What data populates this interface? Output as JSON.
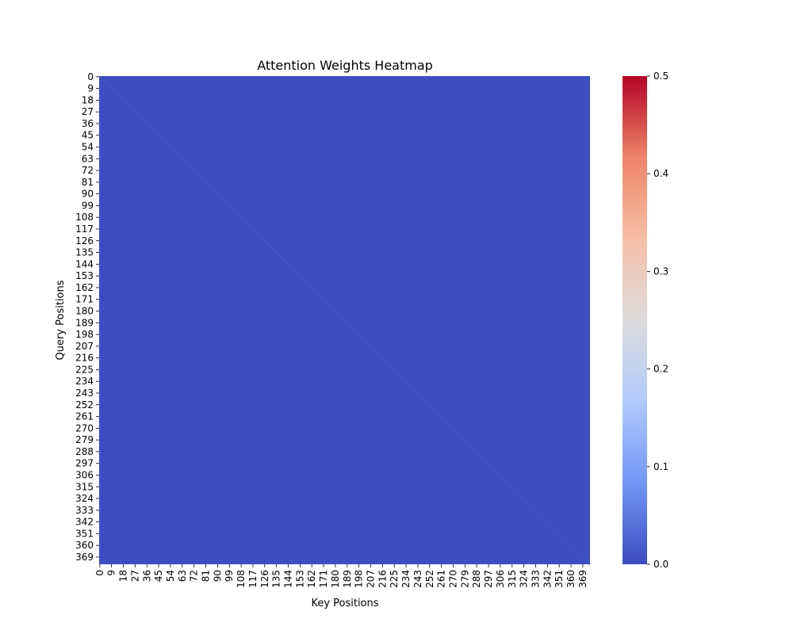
{
  "chart_data": {
    "type": "heatmap",
    "title": "Attention Weights Heatmap",
    "xlabel": "Key Positions",
    "ylabel": "Query Positions",
    "n_rows": 375,
    "n_cols": 375,
    "x_tick_labels": [
      "0",
      "9",
      "18",
      "27",
      "36",
      "45",
      "54",
      "63",
      "72",
      "81",
      "90",
      "99",
      "108",
      "117",
      "126",
      "135",
      "144",
      "153",
      "162",
      "171",
      "180",
      "189",
      "198",
      "207",
      "216",
      "225",
      "234",
      "243",
      "252",
      "261",
      "270",
      "279",
      "288",
      "297",
      "306",
      "315",
      "324",
      "333",
      "342",
      "351",
      "360",
      "369"
    ],
    "y_tick_labels": [
      "0",
      "9",
      "18",
      "27",
      "36",
      "45",
      "54",
      "63",
      "72",
      "81",
      "90",
      "99",
      "108",
      "117",
      "126",
      "135",
      "144",
      "153",
      "162",
      "171",
      "180",
      "189",
      "198",
      "207",
      "216",
      "225",
      "234",
      "243",
      "252",
      "261",
      "270",
      "279",
      "288",
      "297",
      "306",
      "315",
      "324",
      "333",
      "342",
      "351",
      "360",
      "369"
    ],
    "tick_step": 9,
    "value_range": [
      0.0,
      0.5
    ],
    "off_diagonal_value": 0.0026,
    "diagonal_value": 0.01,
    "colormap": "coolwarm",
    "colorbar": {
      "ticks": [
        0.0,
        0.1,
        0.2,
        0.3,
        0.4,
        0.5
      ],
      "tick_labels": [
        "0.0",
        "0.1",
        "0.2",
        "0.3",
        "0.4",
        "0.5"
      ],
      "colors": [
        "#3b4cc0",
        "#7396f5",
        "#b0cbfc",
        "#dddcdc",
        "#f6bfa6",
        "#ee8468",
        "#b40426"
      ]
    }
  }
}
